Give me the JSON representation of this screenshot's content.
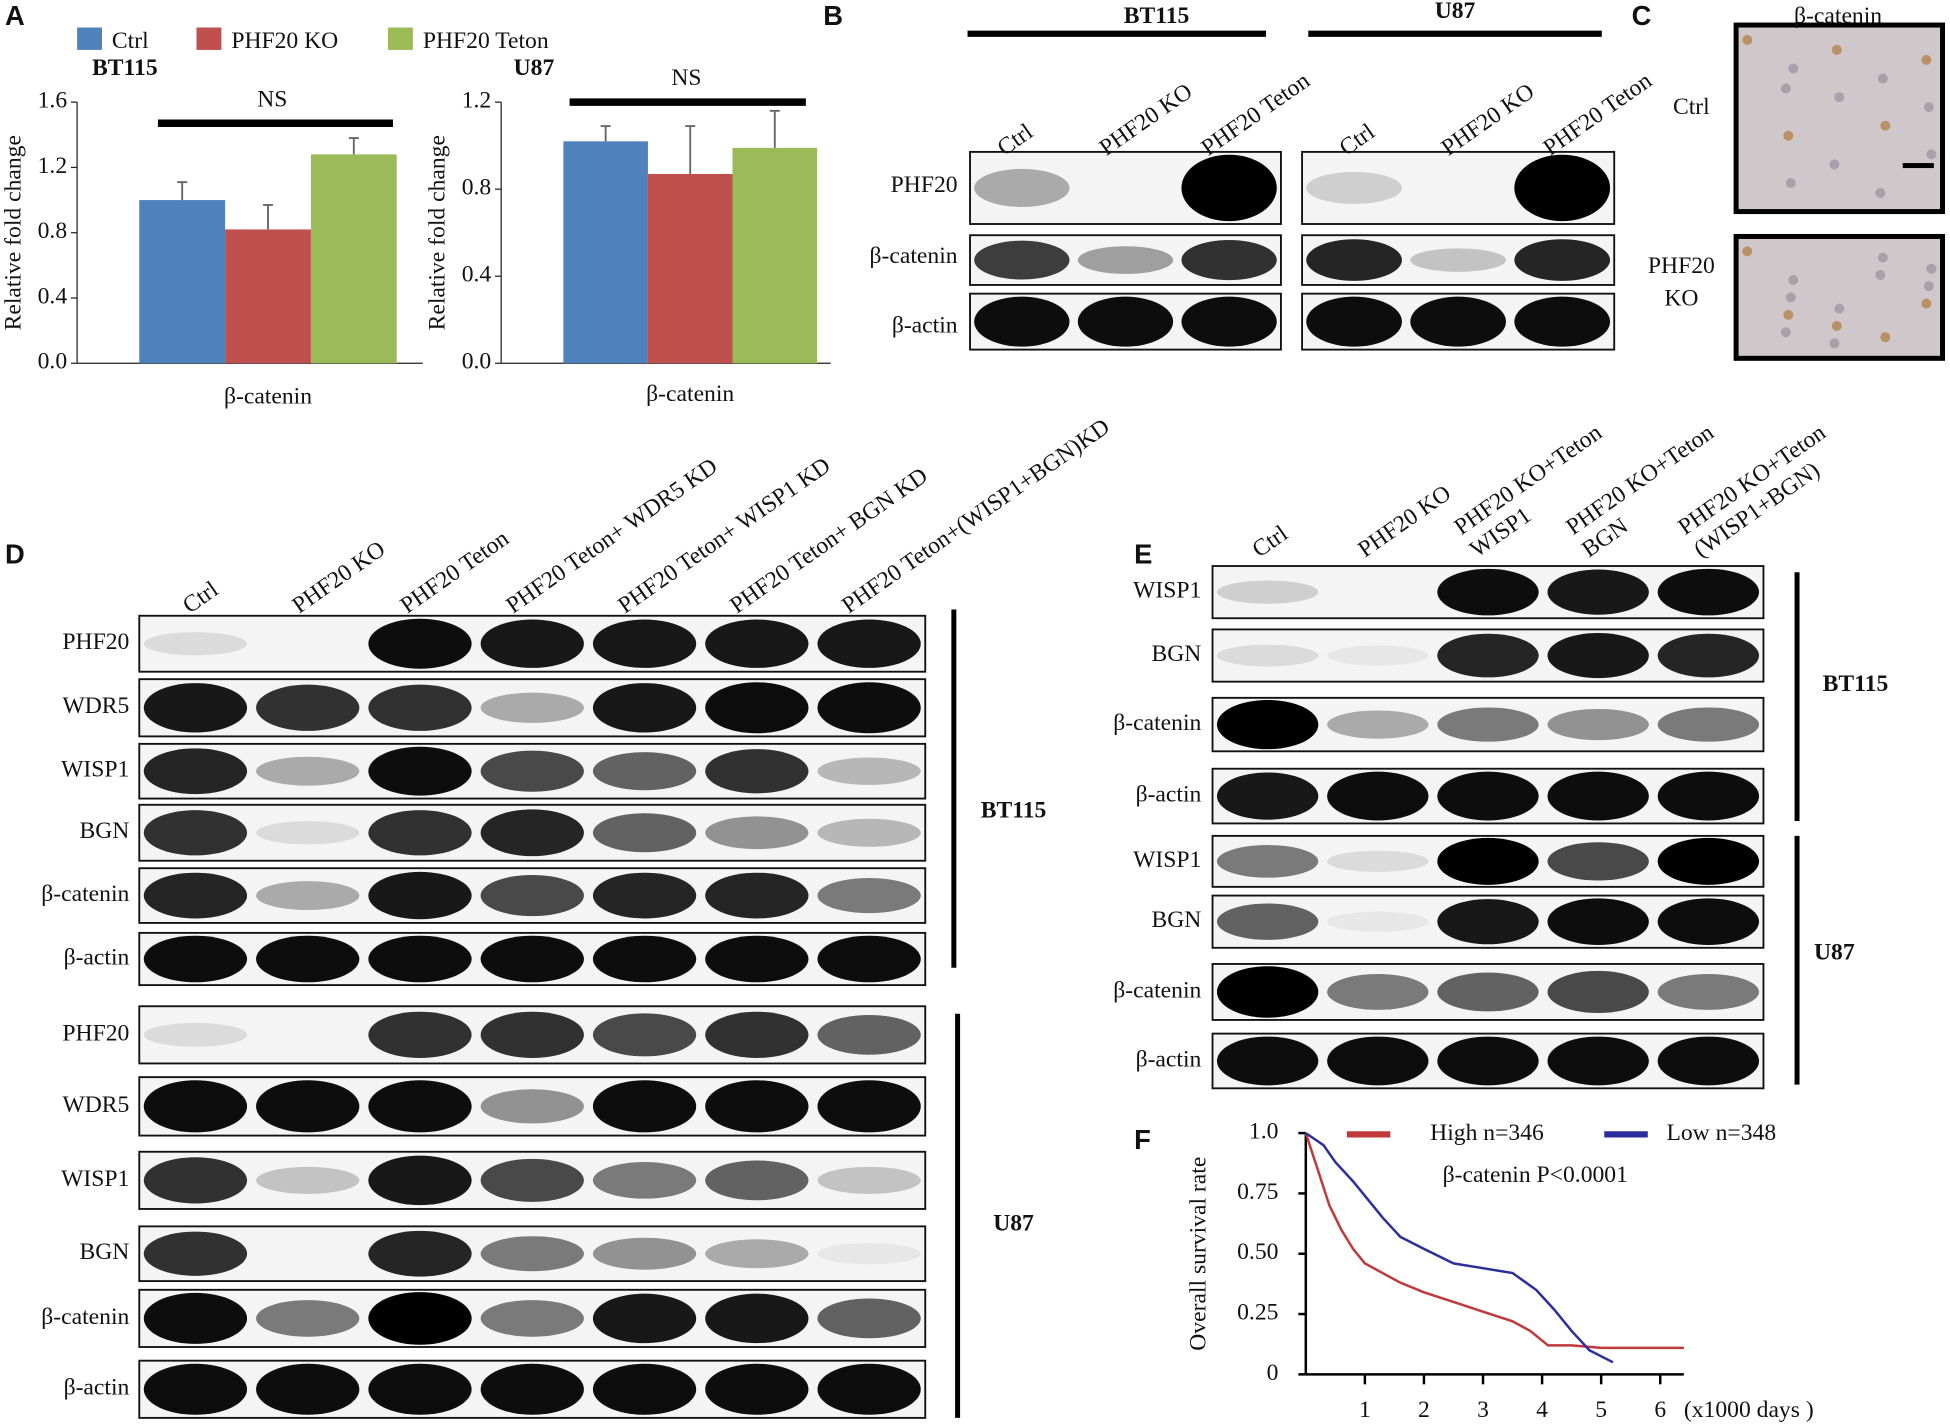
{
  "figure": {
    "panel_labels": [
      "A",
      "B",
      "C",
      "D",
      "E",
      "F"
    ],
    "panel_b": {
      "cell_lines": [
        "BT115",
        "U87"
      ],
      "lanes": [
        "Ctrl",
        "PHF20 KO",
        "PHF20 Teton"
      ],
      "rows": [
        "PHF20",
        "β-catenin",
        "β-actin"
      ]
    },
    "panel_c": {
      "title": "β-catenin",
      "rows": [
        [
          "Ctrl"
        ],
        [
          "PHF20",
          "KO"
        ]
      ]
    },
    "panel_d": {
      "cell_lines": [
        "BT115",
        "U87"
      ],
      "lanes": [
        "Ctrl",
        "PHF20 KO",
        "PHF20 Teton",
        "PHF20 Teton+ WDR5 KD",
        "PHF20 Teton+ WISP1 KD",
        "PHF20 Teton+ BGN KD",
        "PHF20 Teton+(WISP1+BGN)KD"
      ],
      "rows": [
        "PHF20",
        "WDR5",
        "WISP1",
        "BGN",
        "β-catenin",
        "β-actin"
      ]
    },
    "panel_e": {
      "cell_lines": [
        "BT115",
        "U87"
      ],
      "lanes": [
        [
          "Ctrl"
        ],
        [
          "PHF20 KO"
        ],
        [
          "PHF20 KO+Teton",
          "WISP1"
        ],
        [
          "PHF20 KO+Teton",
          "BGN"
        ],
        [
          "PHF20 KO+Teton",
          "(WISP1+BGN)"
        ]
      ],
      "rows": [
        "WISP1",
        "BGN",
        "β-catenin",
        "β-actin"
      ]
    }
  },
  "chart_data": [
    {
      "type": "bar",
      "title": "BT115",
      "ylabel": "Relative fold change",
      "annotation": "NS",
      "categories": [
        "β-catenin"
      ],
      "series": [
        {
          "name": "Ctrl",
          "color": "#4f81bd",
          "values": [
            1.0
          ],
          "errors": [
            0.11
          ]
        },
        {
          "name": "PHF20 KO",
          "color": "#c0504d",
          "values": [
            0.82
          ],
          "errors": [
            0.15
          ]
        },
        {
          "name": "PHF20 Teton",
          "color": "#9bbb59",
          "values": [
            1.28
          ],
          "errors": [
            0.1
          ]
        }
      ],
      "ylim": [
        0,
        1.6
      ],
      "yticks": [
        {
          "value": 0,
          "label": "0.0"
        },
        0.4,
        0.8,
        1.2,
        1.6
      ]
    },
    {
      "type": "bar",
      "title": "U87",
      "ylabel": "Relative fold change",
      "annotation": "NS",
      "categories": [
        "β-catenin"
      ],
      "series": [
        {
          "color": "#4f81bd",
          "values": [
            1.02
          ],
          "errors": [
            0.07
          ]
        },
        {
          "color": "#c0504d",
          "values": [
            0.87
          ],
          "errors": [
            0.22
          ]
        },
        {
          "color": "#9bbb59",
          "values": [
            0.99
          ],
          "errors": [
            0.17
          ]
        }
      ],
      "ylim": [
        0,
        1.2
      ],
      "yticks": [
        {
          "value": 0,
          "label": "0.0"
        },
        0.4,
        0.8,
        1.2
      ]
    },
    {
      "type": "line",
      "ylabel": "Overall survival rate",
      "xlabel": "(x1000 days )",
      "annotation": "β-catenin P<0.0001",
      "series": [
        {
          "name": "High n=346",
          "color": "#c0393b",
          "x": [
            0,
            0.2,
            0.4,
            0.6,
            0.8,
            1.0,
            1.3,
            1.6,
            2.0,
            2.5,
            3.0,
            3.5,
            3.8,
            4.1,
            4.5,
            5.0,
            6.4
          ],
          "values": [
            1.0,
            0.85,
            0.7,
            0.6,
            0.52,
            0.46,
            0.42,
            0.38,
            0.34,
            0.3,
            0.26,
            0.22,
            0.18,
            0.12,
            0.12,
            0.11,
            0.11
          ]
        },
        {
          "name": "Low n=348",
          "color": "#2b2f9e",
          "x": [
            0,
            0.3,
            0.5,
            0.8,
            1.0,
            1.3,
            1.6,
            2.0,
            2.5,
            3.0,
            3.5,
            3.9,
            4.2,
            4.5,
            4.8,
            5.2
          ],
          "values": [
            1.0,
            0.95,
            0.88,
            0.8,
            0.74,
            0.65,
            0.57,
            0.52,
            0.46,
            0.44,
            0.42,
            0.35,
            0.27,
            0.18,
            0.1,
            0.05
          ]
        }
      ],
      "xlim": [
        0,
        6.4
      ],
      "xticks": [
        1,
        2,
        3,
        4,
        5,
        6
      ],
      "ylim": [
        0,
        1.0
      ],
      "yticks": [
        0,
        0.25,
        {
          "value": 0.5,
          "label": "0.50"
        },
        0.75,
        {
          "value": 1.0,
          "label": "1.0"
        }
      ]
    }
  ]
}
